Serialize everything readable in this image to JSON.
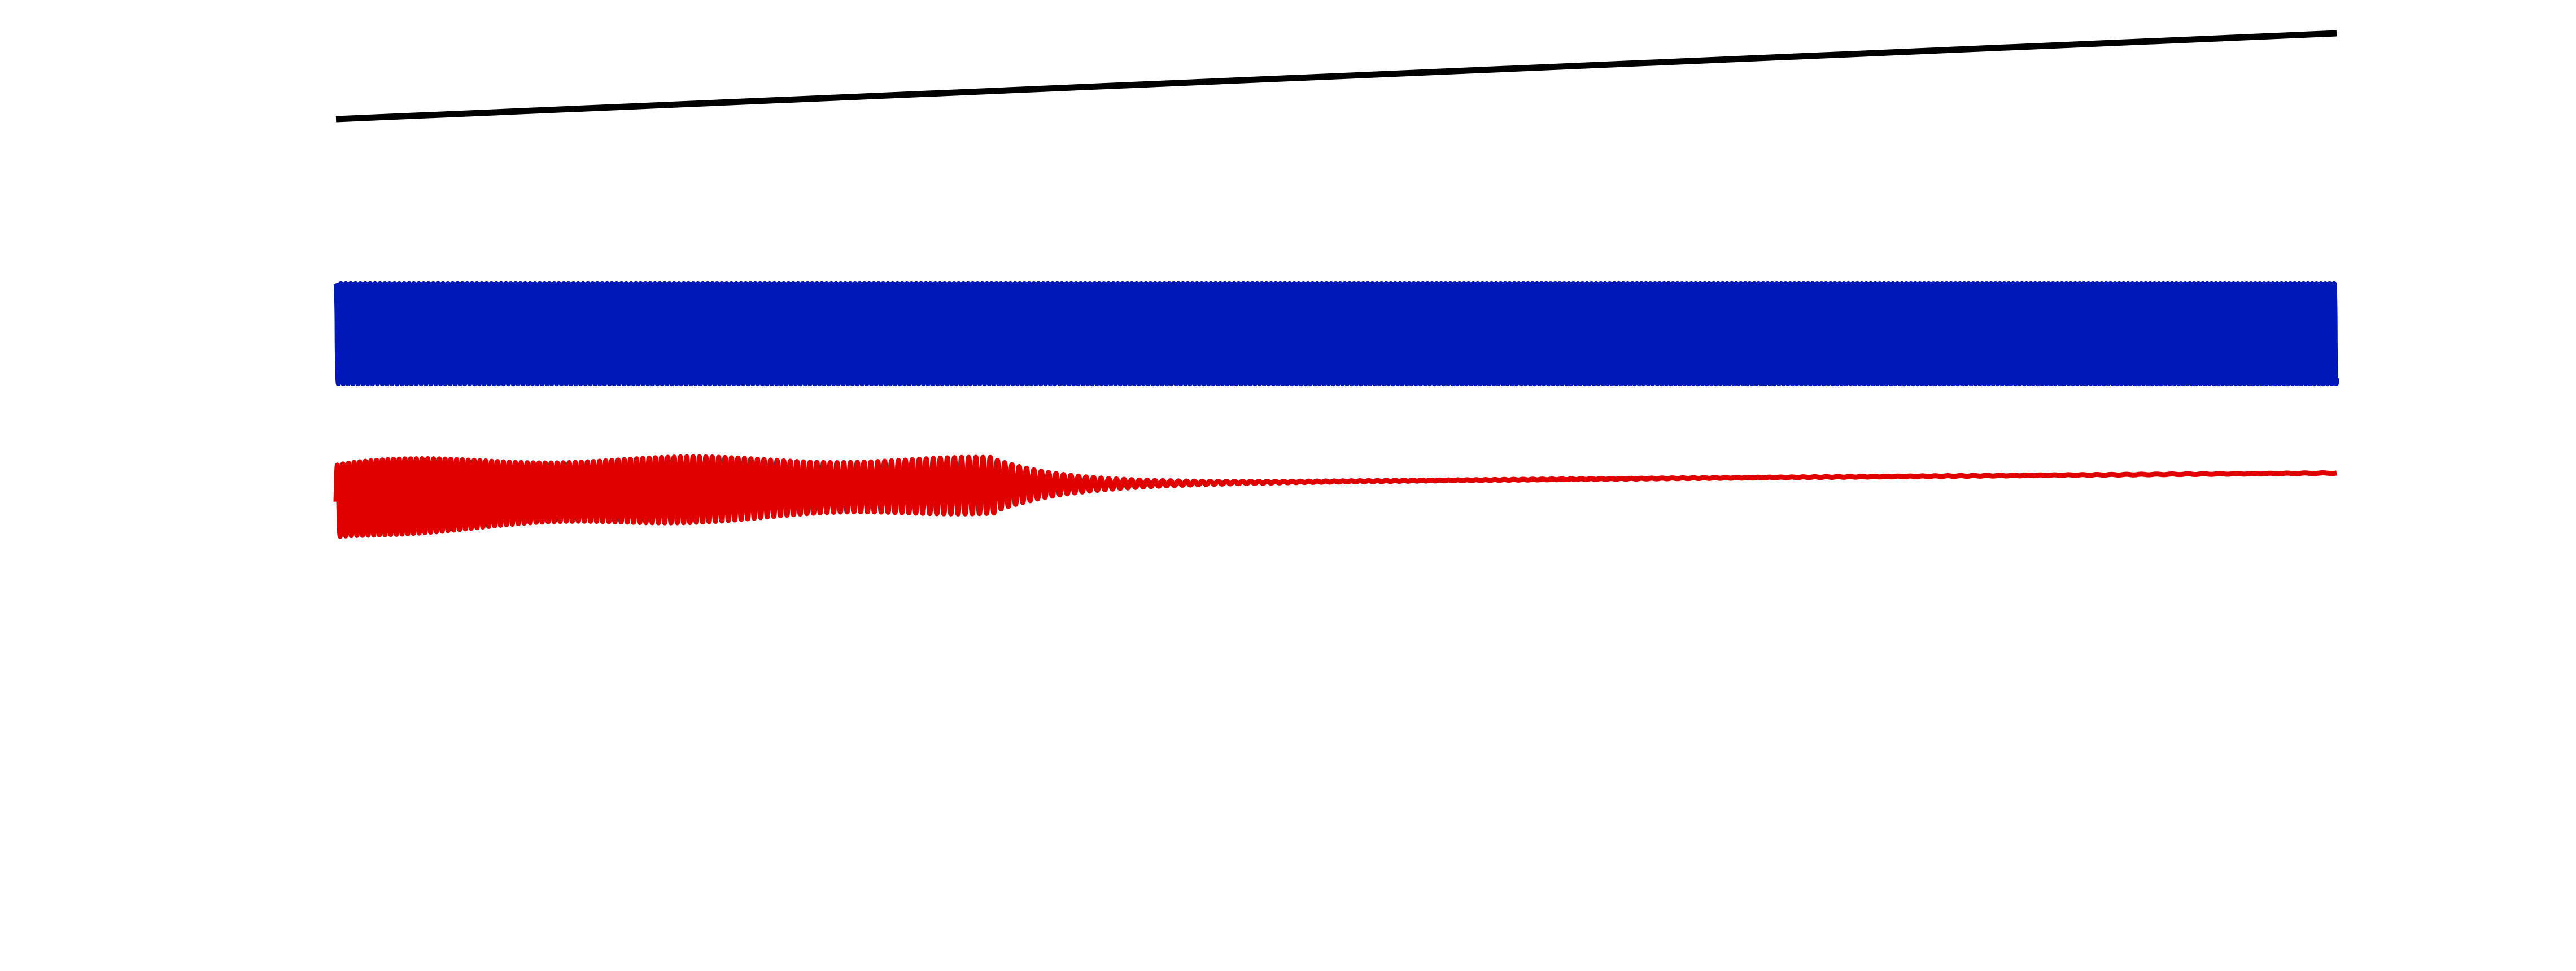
{
  "chart_data": {
    "type": "line",
    "title": "",
    "xlabel": "",
    "ylabel": "",
    "axes_visible": false,
    "grid": false,
    "legend": "none",
    "x_range": [
      0,
      1
    ],
    "y_range": [
      -1.25,
      1.15
    ],
    "series": [
      {
        "role": "ramp",
        "color": "#000000",
        "form": "linear",
        "start": 0.88,
        "end": 1.12
      },
      {
        "role": "oscillation",
        "color": "#0018b8",
        "form": "constant-amplitude",
        "baseline": 0.28,
        "amplitude": 0.14,
        "cycles": 410
      },
      {
        "role": "decaying-oscillation",
        "color": "#e00000",
        "form": "decaying",
        "baseline_start": -0.19,
        "baseline_end": -0.11,
        "amplitude_start": 0.1,
        "amplitude_mid": 0.07,
        "amplitude_knee_x": 0.33,
        "amplitude_end": 0.001,
        "cycles": 360
      }
    ]
  }
}
